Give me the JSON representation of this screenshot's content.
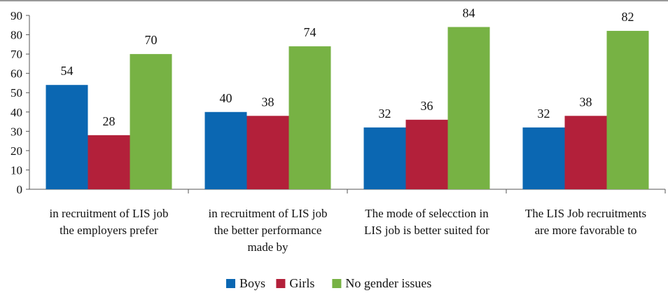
{
  "chart_data": {
    "type": "bar",
    "categories": [
      [
        "in recruitment of LIS job",
        "the employers prefer"
      ],
      [
        "in recruitment of LIS job",
        "the better performance",
        "made by"
      ],
      [
        "The mode of selecction in",
        "LIS job is better suited for"
      ],
      [
        "The LIS Job recruitments",
        "are more favorable to"
      ]
    ],
    "series": [
      {
        "name": "Boys",
        "values": [
          54,
          40,
          32,
          32
        ],
        "color": "#0b67b2"
      },
      {
        "name": "Girls",
        "values": [
          28,
          38,
          36,
          38
        ],
        "color": "#b3203a"
      },
      {
        "name": "No gender issues",
        "values": [
          70,
          74,
          84,
          82
        ],
        "color": "#77b244"
      }
    ],
    "ylim": [
      0,
      90
    ],
    "yticks": [
      0,
      10,
      20,
      30,
      40,
      50,
      60,
      70,
      80,
      90
    ],
    "grid": false,
    "legend_position": "bottom",
    "data_labels": true
  }
}
